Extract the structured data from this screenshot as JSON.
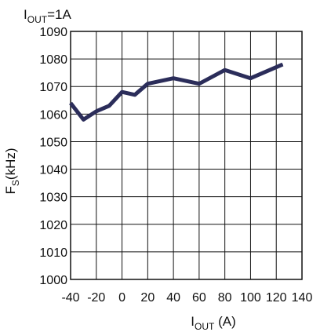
{
  "chart_data": {
    "type": "line",
    "title": {
      "main": "I",
      "sub": "OUT",
      "suffix": "=1A"
    },
    "xlabel": {
      "main": "I",
      "sub": "OUT",
      "suffix": " (A)"
    },
    "ylabel": {
      "main": "F",
      "sub": "S",
      "suffix": "(kHz)"
    },
    "xlim": [
      -40,
      140
    ],
    "ylim": [
      1000,
      1090
    ],
    "xticks": [
      -40,
      -20,
      0,
      20,
      40,
      60,
      80,
      100,
      120,
      140
    ],
    "yticks": [
      1000,
      1010,
      1020,
      1030,
      1040,
      1050,
      1060,
      1070,
      1080,
      1090
    ],
    "grid": true,
    "series": [
      {
        "color": "#2b2d5a",
        "x": [
          -40,
          -30,
          -20,
          -10,
          0,
          10,
          20,
          40,
          60,
          80,
          100,
          125
        ],
        "y": [
          1064,
          1058,
          1061,
          1063,
          1068,
          1067,
          1071,
          1073,
          1071,
          1076,
          1073,
          1078
        ]
      }
    ]
  }
}
